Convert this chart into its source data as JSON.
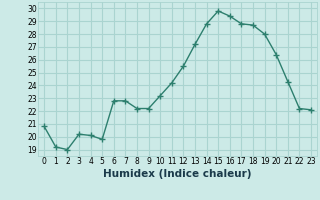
{
  "x": [
    0,
    1,
    2,
    3,
    4,
    5,
    6,
    7,
    8,
    9,
    10,
    11,
    12,
    13,
    14,
    15,
    16,
    17,
    18,
    19,
    20,
    21,
    22,
    23
  ],
  "y": [
    20.8,
    19.2,
    19.0,
    20.2,
    20.1,
    19.8,
    22.8,
    22.8,
    22.2,
    22.2,
    23.2,
    24.2,
    25.5,
    27.2,
    28.8,
    29.8,
    29.4,
    28.8,
    28.7,
    28.0,
    26.4,
    24.3,
    22.2,
    22.1
  ],
  "xlabel": "Humidex (Indice chaleur)",
  "ylim": [
    18.5,
    30.5
  ],
  "xlim": [
    -0.5,
    23.5
  ],
  "yticks": [
    19,
    20,
    21,
    22,
    23,
    24,
    25,
    26,
    27,
    28,
    29,
    30
  ],
  "xticks": [
    0,
    1,
    2,
    3,
    4,
    5,
    6,
    7,
    8,
    9,
    10,
    11,
    12,
    13,
    14,
    15,
    16,
    17,
    18,
    19,
    20,
    21,
    22,
    23
  ],
  "line_color": "#2d7f6e",
  "bg_color": "#cceae7",
  "grid_color": "#aad4d0",
  "marker": "+",
  "marker_size": 4,
  "marker_edge_width": 1.0,
  "line_width": 1.0,
  "tick_fontsize": 5.5,
  "xlabel_fontsize": 7.5,
  "xlabel_color": "#1a3a4a"
}
